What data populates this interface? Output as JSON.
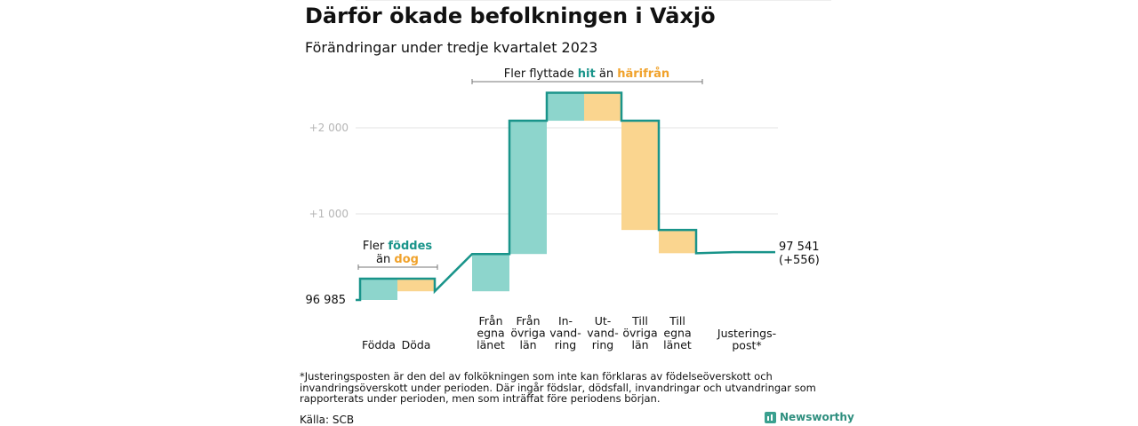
{
  "header": {
    "title": "Därför ökade befolkningen i Växjö",
    "subtitle": "Förändringar under tredje kvartalet 2023"
  },
  "chart_data": {
    "type": "waterfall",
    "colors": {
      "increase": "#8dd5cc",
      "decrease": "#fad58f",
      "line": "#19948a",
      "highlight_born": "#19948a",
      "highlight_died": "#f0a22b"
    },
    "start_label": "96  985",
    "start_value": 96985,
    "y_ticks": [
      {
        "value": 1000,
        "label": "+1  000"
      },
      {
        "value": 2000,
        "label": "+2  000"
      }
    ],
    "bars": [
      {
        "label": [
          "Födda"
        ],
        "change": 248
      },
      {
        "label": [
          "Döda"
        ],
        "change": -147
      },
      {
        "label": [
          "Från",
          "egna",
          "länet"
        ],
        "change": 433
      },
      {
        "label": [
          "Från",
          "övriga",
          "län"
        ],
        "change": 1548
      },
      {
        "label": [
          "In-",
          "vand-",
          "ring"
        ],
        "change": 325
      },
      {
        "label": [
          "Ut-",
          "vand-",
          "ring"
        ],
        "change": -325
      },
      {
        "label": [
          "Till",
          "övriga",
          "län"
        ],
        "change": -1269
      },
      {
        "label": [
          "Till",
          "egna",
          "länet"
        ],
        "change": -270
      },
      {
        "label": [
          "Justerings-",
          "post*"
        ],
        "change": 13
      }
    ],
    "end_value_label": "97 541",
    "end_change_label": "(+556)",
    "annotation_births": {
      "prefix": "Fler ",
      "hl1": "föddes",
      "line2_prefix": "än ",
      "hl2": "dog"
    },
    "annotation_migration": {
      "prefix": "Fler flyttade ",
      "hl1": "hit",
      "mid": " än ",
      "hl2": "härifrån"
    }
  },
  "footer": {
    "note": "*Justeringsposten är den del av folkökningen som inte kan förklaras av födelseöverskott och invandringsöverskott under perioden. Där ingår födslar, dödsfall, invandringar och utvandringar som rapporterats under perioden, men som inträffat före periodens början.",
    "source": "Källa: SCB",
    "brand": "Newsworthy"
  }
}
